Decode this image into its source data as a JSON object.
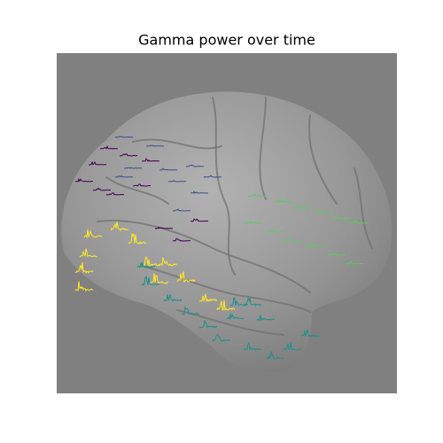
{
  "title": "Gamma power over time"
}
